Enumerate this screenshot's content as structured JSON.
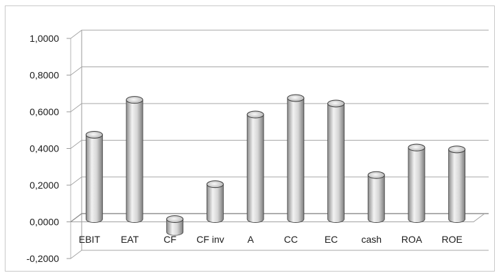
{
  "chart_data": {
    "type": "bar",
    "categories": [
      "EBIT",
      "EAT",
      "CF",
      "CF inv",
      "A",
      "CC",
      "EC",
      "cash",
      "ROA",
      "ROE"
    ],
    "values": [
      0.46,
      0.65,
      -0.07,
      0.19,
      0.57,
      0.66,
      0.63,
      0.24,
      0.39,
      0.38
    ],
    "yticks": [
      "1,0000",
      "0,8000",
      "0,6000",
      "0,4000",
      "0,2000",
      "0,0000",
      "-0,2000"
    ],
    "ylim": [
      -0.2,
      1.0
    ],
    "grid": true,
    "style": "3d-cylinder",
    "bar_color": "#c8c8c8",
    "title": "",
    "xlabel": "",
    "ylabel": ""
  }
}
